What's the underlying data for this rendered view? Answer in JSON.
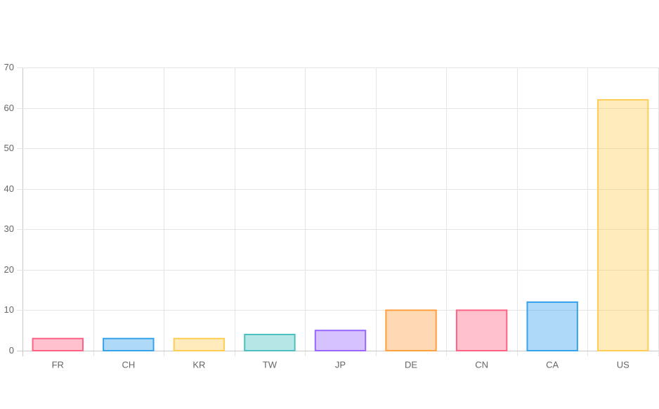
{
  "chart_data": {
    "type": "bar",
    "categories": [
      "FR",
      "CH",
      "KR",
      "TW",
      "JP",
      "DE",
      "CN",
      "CA",
      "US"
    ],
    "values": [
      3,
      3,
      3,
      4,
      5,
      10,
      10,
      12,
      62
    ],
    "colors": [
      "#ff6384",
      "#36a2eb",
      "#ffcd56",
      "#4bc0c0",
      "#9966ff",
      "#ff9f40",
      "#ff6384",
      "#36a2eb",
      "#ffcd56"
    ],
    "ylim": [
      0,
      70
    ],
    "yticks": [
      0,
      10,
      20,
      30,
      40,
      50,
      60,
      70
    ],
    "grid": true
  }
}
